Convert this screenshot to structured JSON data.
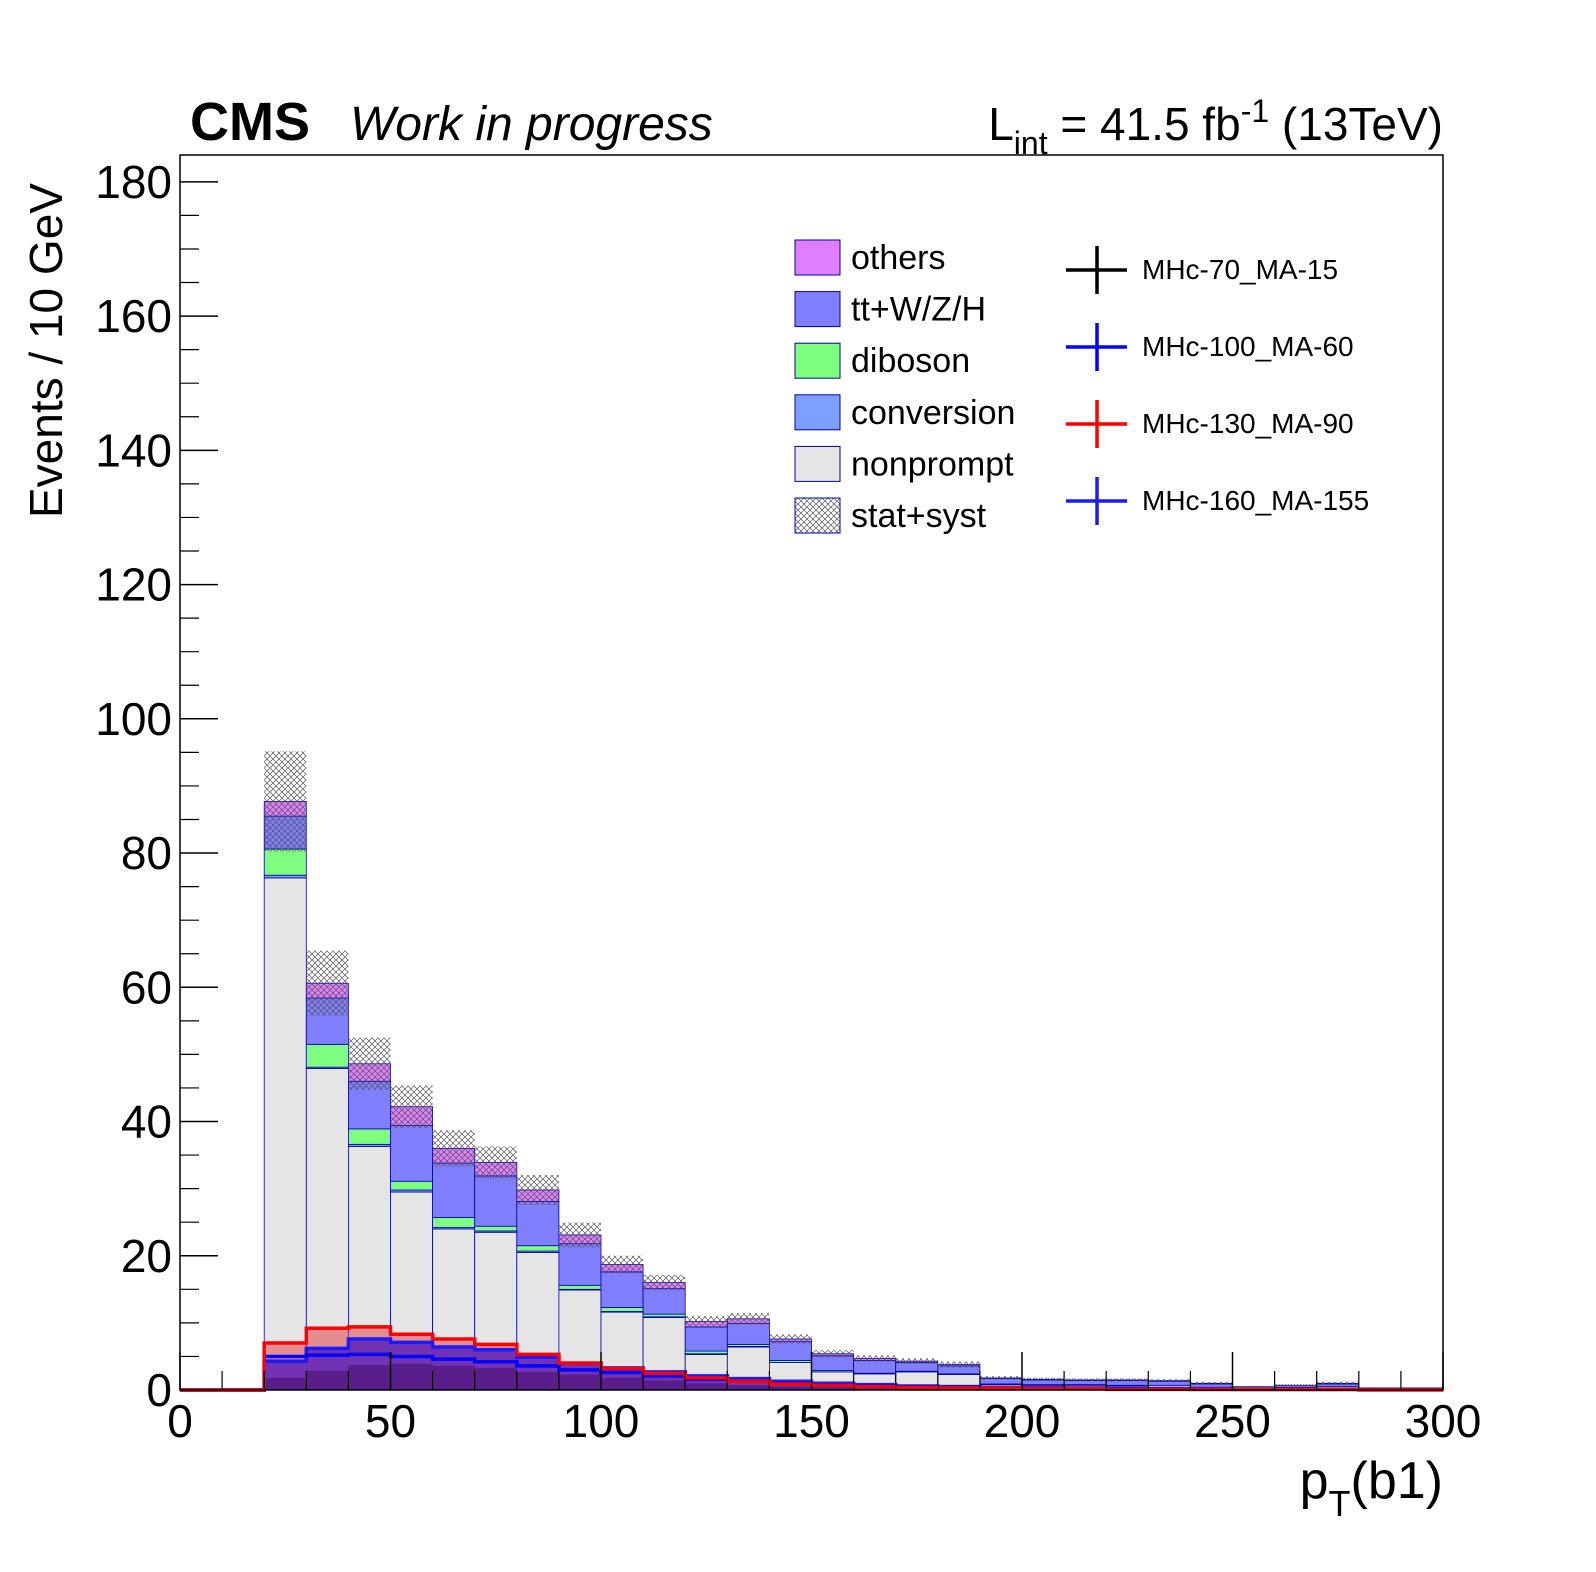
{
  "header": {
    "cms": "CMS",
    "status": "Work in progress",
    "lumi_prefix": "L",
    "lumi_sub": "int",
    "lumi_value": " = 41.5 fb",
    "lumi_sup": "-1",
    "lumi_energy": " (13TeV)"
  },
  "axes": {
    "ylabel": "Events / 10 GeV",
    "xlabel_main": "p",
    "xlabel_sub": "T",
    "xlabel_rest": "(b1)"
  },
  "chart_data": {
    "type": "bar",
    "subtype": "stacked-histogram",
    "bin_edges": [
      0,
      10,
      20,
      30,
      40,
      50,
      60,
      70,
      80,
      90,
      100,
      110,
      120,
      130,
      140,
      150,
      160,
      170,
      180,
      190,
      200,
      210,
      220,
      230,
      240,
      250,
      260,
      270,
      280,
      290,
      300
    ],
    "xlim": [
      0,
      300
    ],
    "ylim": [
      0,
      184
    ],
    "x_ticks": [
      0,
      50,
      100,
      150,
      200,
      250,
      300
    ],
    "y_ticks": [
      0,
      20,
      40,
      60,
      80,
      100,
      120,
      140,
      160,
      180
    ],
    "grid": false,
    "legend_position": "top-right",
    "colors": {
      "nonprompt": "#e5e5e5",
      "conversion": "#7f9fff",
      "diboson": "#7fff7f",
      "ttX": "#7f7fff",
      "others": "#df7fff",
      "stat_syst": "#808080",
      "sig_black": "#000000",
      "sig_blue": "#0000ff",
      "sig_red": "#ff0000",
      "sig_dark": "#1a1aff"
    },
    "stack": [
      {
        "name": "nonprompt",
        "values": [
          0,
          0,
          76.3,
          47.9,
          36.3,
          29.5,
          24.0,
          23.5,
          20.5,
          14.9,
          11.6,
          10.8,
          5.3,
          6.4,
          4.1,
          2.7,
          2.4,
          2.7,
          2.3,
          0.8,
          0.7,
          0.7,
          0.6,
          0.7,
          0.4,
          0.2,
          0.4,
          0.5,
          0.1,
          0.1
        ]
      },
      {
        "name": "conversion",
        "values": [
          0,
          0,
          0.4,
          0.2,
          0.3,
          0.3,
          0.2,
          0.2,
          0.2,
          0.1,
          0.1,
          0.1,
          0.1,
          0.1,
          0,
          0,
          0,
          0,
          0,
          0,
          0,
          0,
          0,
          0,
          0,
          0,
          0,
          0,
          0,
          0
        ]
      },
      {
        "name": "diboson",
        "values": [
          0,
          0,
          3.9,
          3.4,
          2.3,
          1.3,
          1.5,
          0.7,
          0.8,
          0.6,
          0.6,
          0.4,
          0.4,
          0.3,
          0.3,
          0.2,
          0.1,
          0.1,
          0.1,
          0.1,
          0.1,
          0.1,
          0.1,
          0,
          0,
          0,
          0,
          0,
          0,
          0
        ]
      },
      {
        "name": "tt+W/Z/H",
        "values": [
          0,
          0,
          4.9,
          6.9,
          7.1,
          8.3,
          8.1,
          7.5,
          6.6,
          6.2,
          5.3,
          3.8,
          3.6,
          3.1,
          2.8,
          2.2,
          1.9,
          1.3,
          1.2,
          0.8,
          0.7,
          0.6,
          0.7,
          0.6,
          0.5,
          0.3,
          0.3,
          0.4,
          0.2,
          0.2
        ]
      },
      {
        "name": "others",
        "values": [
          0,
          0,
          2.2,
          2.2,
          2.6,
          2.8,
          2.2,
          2.0,
          1.7,
          1.3,
          1.1,
          0.9,
          0.8,
          0.7,
          0.4,
          0.3,
          0.3,
          0.2,
          0.2,
          0.1,
          0.1,
          0.1,
          0.1,
          0.1,
          0.1,
          0,
          0,
          0.1,
          0,
          0
        ]
      }
    ],
    "uncertainty": {
      "name": "stat+syst",
      "frac": [
        0,
        0,
        0.085,
        0.08,
        0.08,
        0.075,
        0.075,
        0.07,
        0.075,
        0.08,
        0.07,
        0.07,
        0.08,
        0.08,
        0.09,
        0.1,
        0.1,
        0.1,
        0.12,
        0.15,
        0.15,
        0.15,
        0.15,
        0.15,
        0.2,
        0.2,
        0.25,
        0.25,
        0.3,
        0.3
      ]
    },
    "signals": [
      {
        "name": "MHc-70_MA-15",
        "color": "#000000",
        "values": [
          0,
          0,
          0,
          0,
          0,
          0,
          0,
          0,
          0,
          0,
          0,
          0,
          0,
          0,
          0,
          0,
          0,
          0,
          0,
          0,
          0,
          0,
          0,
          0,
          0,
          0,
          0,
          0,
          0,
          0
        ]
      },
      {
        "name": "MHc-100_MA-60",
        "color": "#0000ff",
        "values": [
          0,
          0,
          5.0,
          5.2,
          5.3,
          5.0,
          4.6,
          4.2,
          3.6,
          3.0,
          2.6,
          2.1,
          1.6,
          1.3,
          1.0,
          0.8,
          0.6,
          0.5,
          0.4,
          0.3,
          0.3,
          0.2,
          0.2,
          0.2,
          0.1,
          0.1,
          0.1,
          0.1,
          0.1,
          0.1
        ]
      },
      {
        "name": "MHc-130_MA-90",
        "color": "#ff0000",
        "values": [
          0,
          0,
          7.0,
          9.2,
          9.4,
          8.3,
          7.6,
          6.8,
          5.3,
          4.0,
          3.2,
          2.5,
          1.8,
          1.3,
          0.9,
          0.7,
          0.5,
          0.4,
          0.3,
          0.3,
          0.2,
          0.2,
          0.1,
          0.1,
          0.1,
          0.1,
          0.1,
          0.1,
          0,
          0
        ]
      },
      {
        "name": "MHc-160_MA-155",
        "color": "#1a1aff",
        "values": [
          0,
          0,
          4.3,
          6.2,
          7.6,
          7.1,
          6.4,
          6.0,
          4.9,
          4.0,
          3.3,
          2.7,
          2.1,
          1.7,
          1.3,
          1.0,
          0.8,
          0.6,
          0.5,
          0.4,
          0.3,
          0.3,
          0.2,
          0.2,
          0.2,
          0.1,
          0.1,
          0.1,
          0.1,
          0.1
        ]
      }
    ],
    "signal_fills": [
      {
        "name": "MHc-130_MA-90",
        "color": "rgba(226,70,80,0.55)",
        "values": [
          0,
          0,
          6.9,
          9.0,
          9.2,
          8.1,
          7.4,
          6.6,
          5.1,
          3.9,
          3.0,
          2.4,
          1.7,
          1.2,
          0.8,
          0.6,
          0.4,
          0.3,
          0.2,
          0.2,
          0.1,
          0.1,
          0.1,
          0.1,
          0.1,
          0.1,
          0.1,
          0.1,
          0,
          0
        ]
      },
      {
        "name": "MHc-160_MA-155",
        "color": "#7232b4",
        "values": [
          0,
          0,
          4.2,
          6.0,
          7.5,
          7.0,
          6.3,
          5.9,
          4.8,
          3.9,
          3.2,
          2.6,
          2.0,
          1.6,
          1.2,
          0.9,
          0.7,
          0.5,
          0.4,
          0.3,
          0.3,
          0.2,
          0.2,
          0.2,
          0.2,
          0.1,
          0.1,
          0.1,
          0.1,
          0.1
        ]
      },
      {
        "name": "MHc-100_MA-60",
        "color": "#5a1e8c",
        "values": [
          0,
          0,
          1.8,
          2.9,
          3.7,
          3.9,
          3.6,
          3.3,
          2.7,
          2.3,
          1.8,
          1.4,
          1.0,
          0.7,
          0.5,
          0.4,
          0.3,
          0.2,
          0.2,
          0.1,
          0.1,
          0.1,
          0.1,
          0.1,
          0.1,
          0.1,
          0,
          0,
          0,
          0
        ]
      }
    ],
    "legend_bkg": [
      {
        "label": "others",
        "color": "#df7fff"
      },
      {
        "label": "tt+W/Z/H",
        "color": "#7f7fff"
      },
      {
        "label": "diboson",
        "color": "#7fff7f"
      },
      {
        "label": "conversion",
        "color": "#7f9fff"
      },
      {
        "label": "nonprompt",
        "color": "#e5e5e5"
      },
      {
        "label": "stat+syst",
        "color": "hatch"
      }
    ],
    "legend_sig": [
      {
        "label": "MHc-70_MA-15",
        "color": "#000000"
      },
      {
        "label": "MHc-100_MA-60",
        "color": "#0000ff"
      },
      {
        "label": "MHc-130_MA-90",
        "color": "#ff0000"
      },
      {
        "label": "MHc-160_MA-155",
        "color": "#1a1aff"
      }
    ]
  }
}
